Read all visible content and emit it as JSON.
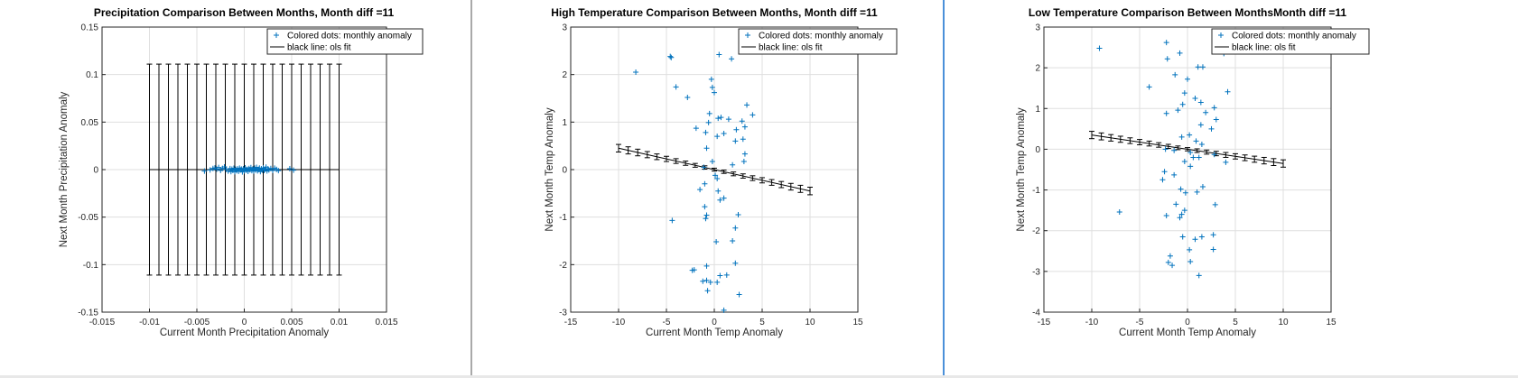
{
  "colors": {
    "marker": "#0072BD",
    "fit": "#000000",
    "grid": "#dfdfdf",
    "axis": "#262626",
    "divider": "#a9a9a9",
    "divider_accent": "#4a90d9"
  },
  "chart_data": [
    {
      "type": "scatter",
      "title": "Precipitation Comparison Between Months, Month diff =11",
      "xlabel": "Current Month Precipitation Anomaly",
      "ylabel": "Next Month Precipitation Anomaly",
      "xlim": [
        -0.015,
        0.015
      ],
      "ylim": [
        -0.15,
        0.15
      ],
      "xticks": [
        -0.015,
        -0.01,
        -0.005,
        0,
        0.005,
        0.01,
        0.015
      ],
      "xtick_labels": [
        "-0.015",
        "-0.01",
        "-0.005",
        "0",
        "0.005",
        "0.01",
        "0.015"
      ],
      "yticks": [
        -0.15,
        -0.1,
        -0.05,
        0,
        0.05,
        0.1,
        0.15
      ],
      "ytick_labels": [
        "-0.15",
        "-0.1",
        "-0.05",
        "0",
        "0.05",
        "0.1",
        "0.15"
      ],
      "grid": true,
      "legend": {
        "position": "top-right",
        "entries": [
          "Colored dots: monthly anomaly",
          "black line: ols fit"
        ]
      },
      "fit_line": {
        "x": [
          -0.01,
          0.01
        ],
        "y": [
          0.0,
          0.0
        ]
      },
      "error_bars": {
        "x": [
          -0.01,
          -0.009,
          -0.008,
          -0.007,
          -0.006,
          -0.005,
          -0.004,
          -0.003,
          -0.002,
          -0.001,
          0.0,
          0.001,
          0.002,
          0.003,
          0.004,
          0.005,
          0.006,
          0.007,
          0.008,
          0.009,
          0.01
        ],
        "center": [
          0,
          0,
          0,
          0,
          0,
          0,
          0,
          0,
          0,
          0,
          0,
          0,
          0,
          0,
          0,
          0,
          0,
          0,
          0,
          0,
          0
        ],
        "half_width": [
          0.111,
          0.111,
          0.111,
          0.111,
          0.111,
          0.111,
          0.111,
          0.111,
          0.111,
          0.111,
          0.111,
          0.111,
          0.111,
          0.111,
          0.111,
          0.111,
          0.111,
          0.111,
          0.111,
          0.111,
          0.111
        ]
      },
      "points": [
        [
          -0.0042,
          -0.0015
        ],
        [
          -0.0033,
          0.0012
        ],
        [
          -0.0031,
          0.0018
        ],
        [
          -0.0029,
          0.0005
        ],
        [
          -0.0027,
          0.0022
        ],
        [
          -0.0025,
          -0.0008
        ],
        [
          -0.0023,
          0.0013
        ],
        [
          -0.0021,
          0.0028
        ],
        [
          -0.0019,
          0.0002
        ],
        [
          -0.0017,
          -0.0015
        ],
        [
          -0.0015,
          0.0011
        ],
        [
          -0.0014,
          -0.0021
        ],
        [
          -0.0013,
          0.0005
        ],
        [
          -0.0012,
          -0.0009
        ],
        [
          -0.0011,
          0.0014
        ],
        [
          -0.001,
          -0.0022
        ],
        [
          -0.0009,
          0.0003
        ],
        [
          -0.0008,
          -0.0012
        ],
        [
          -0.0007,
          0.0008
        ],
        [
          -0.0006,
          -0.0018
        ],
        [
          -0.0005,
          0.0016
        ],
        [
          -0.0004,
          -0.0004
        ],
        [
          -0.0003,
          0.0006
        ],
        [
          -0.0002,
          -0.0025
        ],
        [
          -0.0001,
          0.0009
        ],
        [
          0.0,
          -0.0014
        ],
        [
          0.0001,
          0.0019
        ],
        [
          0.0002,
          -0.0007
        ],
        [
          0.0003,
          0.0004
        ],
        [
          0.0004,
          -0.0019
        ],
        [
          0.0005,
          0.0012
        ],
        [
          0.0006,
          -0.0002
        ],
        [
          0.0007,
          0.0021
        ],
        [
          0.0008,
          -0.0011
        ],
        [
          0.0009,
          0.0007
        ],
        [
          0.001,
          -0.0016
        ],
        [
          0.0011,
          0.0015
        ],
        [
          0.0012,
          -0.0005
        ],
        [
          0.0013,
          0.0024
        ],
        [
          0.0014,
          -0.0013
        ],
        [
          0.0015,
          0.0003
        ],
        [
          0.0016,
          0.0017
        ],
        [
          0.0017,
          -0.0021
        ],
        [
          0.0018,
          0.001
        ],
        [
          0.0019,
          -0.0006
        ],
        [
          0.002,
          0.0018
        ],
        [
          0.0021,
          -0.0009
        ],
        [
          0.0022,
          0.0004
        ],
        [
          0.0023,
          0.0026
        ],
        [
          0.0024,
          -0.0014
        ],
        [
          0.0025,
          0.0008
        ],
        [
          0.0026,
          -0.0003
        ],
        [
          0.0028,
          0.0012
        ],
        [
          0.003,
          -0.0008
        ],
        [
          0.0032,
          0.0015
        ],
        [
          0.0034,
          0.0002
        ],
        [
          0.0036,
          -0.0011
        ],
        [
          0.0048,
          0.0009
        ],
        [
          0.0052,
          -0.0006
        ],
        [
          -0.0036,
          -0.0004
        ]
      ]
    },
    {
      "type": "scatter",
      "title": "High Temperature Comparison Between Months, Month diff =11",
      "xlabel": "Current Month Temp Anomaly",
      "ylabel": "Next Month Temp Anomaly",
      "xlim": [
        -15,
        15
      ],
      "ylim": [
        -3,
        3
      ],
      "xticks": [
        -15,
        -10,
        -5,
        0,
        5,
        10,
        15
      ],
      "xtick_labels": [
        "-15",
        "-10",
        "-5",
        "0",
        "5",
        "10",
        "15"
      ],
      "yticks": [
        -3,
        -2,
        -1,
        0,
        1,
        2,
        3
      ],
      "ytick_labels": [
        "-3",
        "-2",
        "-1",
        "0",
        "1",
        "2",
        "3"
      ],
      "grid": true,
      "legend": {
        "position": "top-right",
        "entries": [
          "Colored dots: monthly anomaly",
          "black line: ols fit"
        ]
      },
      "fit_line": {
        "x": [
          -10,
          10
        ],
        "y": [
          0.45,
          -0.45
        ]
      },
      "error_bars": {
        "x": [
          -10,
          -9,
          -8,
          -7,
          -6,
          -5,
          -4,
          -3,
          -2,
          -1,
          0,
          1,
          2,
          3,
          4,
          5,
          6,
          7,
          8,
          9,
          10
        ],
        "center": [
          0.45,
          0.405,
          0.36,
          0.315,
          0.27,
          0.225,
          0.18,
          0.135,
          0.09,
          0.045,
          0,
          -0.045,
          -0.09,
          -0.135,
          -0.18,
          -0.225,
          -0.27,
          -0.315,
          -0.36,
          -0.405,
          -0.45
        ],
        "half_width": [
          0.08,
          0.075,
          0.07,
          0.065,
          0.06,
          0.055,
          0.05,
          0.045,
          0.04,
          0.035,
          0.03,
          0.035,
          0.04,
          0.045,
          0.05,
          0.055,
          0.06,
          0.065,
          0.07,
          0.075,
          0.08
        ]
      },
      "points": [
        [
          -8.2,
          2.05
        ],
        [
          -4.6,
          2.38
        ],
        [
          -4.5,
          2.36
        ],
        [
          0.5,
          2.42
        ],
        [
          1.8,
          2.33
        ],
        [
          -0.3,
          1.9
        ],
        [
          -0.2,
          1.73
        ],
        [
          -4.0,
          1.74
        ],
        [
          -2.8,
          1.52
        ],
        [
          0.0,
          1.62
        ],
        [
          -0.5,
          1.18
        ],
        [
          3.4,
          1.36
        ],
        [
          4.0,
          1.15
        ],
        [
          -0.6,
          0.99
        ],
        [
          0.4,
          1.08
        ],
        [
          0.7,
          1.1
        ],
        [
          1.5,
          1.06
        ],
        [
          2.9,
          1.02
        ],
        [
          3.2,
          0.9
        ],
        [
          -1.9,
          0.87
        ],
        [
          2.3,
          0.84
        ],
        [
          -0.9,
          0.78
        ],
        [
          0.3,
          0.7
        ],
        [
          1.0,
          0.76
        ],
        [
          3.0,
          0.64
        ],
        [
          2.2,
          0.6
        ],
        [
          -0.8,
          0.45
        ],
        [
          3.2,
          0.33
        ],
        [
          -0.2,
          0.17
        ],
        [
          3.1,
          0.17
        ],
        [
          1.9,
          0.1
        ],
        [
          -1.1,
          0.05
        ],
        [
          0.1,
          -0.12
        ],
        [
          0.3,
          -0.19
        ],
        [
          -1.0,
          -0.3
        ],
        [
          0.4,
          -0.45
        ],
        [
          -1.5,
          -0.42
        ],
        [
          1.0,
          -0.6
        ],
        [
          0.6,
          -0.64
        ],
        [
          -1.0,
          -0.78
        ],
        [
          -4.4,
          -1.07
        ],
        [
          -0.8,
          -0.96
        ],
        [
          -0.9,
          -1.03
        ],
        [
          2.5,
          -0.95
        ],
        [
          2.2,
          -1.23
        ],
        [
          0.2,
          -1.52
        ],
        [
          1.9,
          -1.5
        ],
        [
          -2.1,
          -2.11
        ],
        [
          -2.3,
          -2.12
        ],
        [
          -0.8,
          -2.03
        ],
        [
          2.2,
          -1.97
        ],
        [
          1.3,
          -2.22
        ],
        [
          -0.8,
          -2.33
        ],
        [
          -0.4,
          -2.37
        ],
        [
          0.3,
          -2.37
        ],
        [
          -0.7,
          -2.55
        ],
        [
          2.6,
          -2.63
        ],
        [
          1.0,
          -2.96
        ],
        [
          -1.2,
          -2.35
        ],
        [
          0.6,
          -2.23
        ]
      ]
    },
    {
      "type": "scatter",
      "title": "Low Temperature Comparison Between MonthsMonth diff =11",
      "xlabel": "Current Month Temp Anomaly",
      "ylabel": "Next Month Temp Anomaly",
      "xlim": [
        -15,
        15
      ],
      "ylim": [
        -4,
        3
      ],
      "xticks": [
        -15,
        -10,
        -5,
        0,
        5,
        10,
        15
      ],
      "xtick_labels": [
        "-15",
        "-10",
        "-5",
        "0",
        "5",
        "10",
        "15"
      ],
      "yticks": [
        -4,
        -3,
        -2,
        -1,
        0,
        1,
        2,
        3
      ],
      "ytick_labels": [
        "-4",
        "-3",
        "-2",
        "-1",
        "0",
        "1",
        "2",
        "3"
      ],
      "grid": true,
      "legend": {
        "position": "top-right",
        "entries": [
          "Colored dots: monthly anomaly",
          "black line: ols fit"
        ]
      },
      "fit_line": {
        "x": [
          -10,
          10
        ],
        "y": [
          0.35,
          -0.35
        ]
      },
      "error_bars": {
        "x": [
          -10,
          -9,
          -8,
          -7,
          -6,
          -5,
          -4,
          -3,
          -2,
          -1,
          0,
          1,
          2,
          3,
          4,
          5,
          6,
          7,
          8,
          9,
          10
        ],
        "center": [
          0.35,
          0.315,
          0.28,
          0.245,
          0.21,
          0.175,
          0.14,
          0.105,
          0.07,
          0.035,
          0,
          -0.035,
          -0.07,
          -0.105,
          -0.14,
          -0.175,
          -0.21,
          -0.245,
          -0.28,
          -0.315,
          -0.35
        ],
        "half_width": [
          0.09,
          0.085,
          0.08,
          0.075,
          0.07,
          0.065,
          0.06,
          0.055,
          0.05,
          0.045,
          0.04,
          0.045,
          0.05,
          0.055,
          0.06,
          0.065,
          0.07,
          0.075,
          0.08,
          0.085,
          0.09
        ]
      },
      "points": [
        [
          -9.2,
          2.48
        ],
        [
          -2.2,
          2.62
        ],
        [
          -2.1,
          2.22
        ],
        [
          1.1,
          2.02
        ],
        [
          1.6,
          2.02
        ],
        [
          -0.8,
          2.36
        ],
        [
          3.8,
          2.35
        ],
        [
          0.0,
          1.72
        ],
        [
          -4.0,
          1.53
        ],
        [
          -1.3,
          1.83
        ],
        [
          -0.3,
          1.38
        ],
        [
          0.8,
          1.25
        ],
        [
          1.4,
          1.15
        ],
        [
          2.8,
          1.02
        ],
        [
          4.2,
          1.41
        ],
        [
          -2.2,
          0.88
        ],
        [
          -1.0,
          0.96
        ],
        [
          -0.5,
          1.1
        ],
        [
          1.9,
          0.9
        ],
        [
          3.0,
          0.73
        ],
        [
          2.5,
          0.5
        ],
        [
          0.2,
          0.35
        ],
        [
          -0.6,
          0.3
        ],
        [
          1.4,
          0.6
        ],
        [
          0.9,
          0.2
        ],
        [
          -2.3,
          0.0
        ],
        [
          -1.4,
          -0.03
        ],
        [
          0.3,
          -0.08
        ],
        [
          1.2,
          -0.2
        ],
        [
          -0.3,
          -0.3
        ],
        [
          4.0,
          -0.32
        ],
        [
          2.8,
          -0.13
        ],
        [
          0.3,
          -0.42
        ],
        [
          -2.6,
          -0.75
        ],
        [
          -1.4,
          -0.63
        ],
        [
          -0.7,
          -0.98
        ],
        [
          1.6,
          -0.92
        ],
        [
          1.0,
          -1.05
        ],
        [
          -0.2,
          -1.07
        ],
        [
          -1.2,
          -1.35
        ],
        [
          -0.6,
          -1.6
        ],
        [
          -0.8,
          -1.68
        ],
        [
          -7.1,
          -1.54
        ],
        [
          -0.3,
          -1.5
        ],
        [
          2.9,
          -1.36
        ],
        [
          -2.2,
          -1.63
        ],
        [
          0.8,
          -2.21
        ],
        [
          2.7,
          -2.1
        ],
        [
          1.5,
          -2.15
        ],
        [
          -0.5,
          -2.15
        ],
        [
          -1.8,
          -2.62
        ],
        [
          -2.0,
          -2.78
        ],
        [
          -1.6,
          -2.85
        ],
        [
          0.2,
          -2.47
        ],
        [
          2.7,
          -2.46
        ],
        [
          0.3,
          -2.76
        ],
        [
          1.2,
          -3.1
        ],
        [
          -2.4,
          -0.55
        ],
        [
          0.6,
          -0.2
        ],
        [
          1.5,
          0.12
        ]
      ]
    }
  ]
}
